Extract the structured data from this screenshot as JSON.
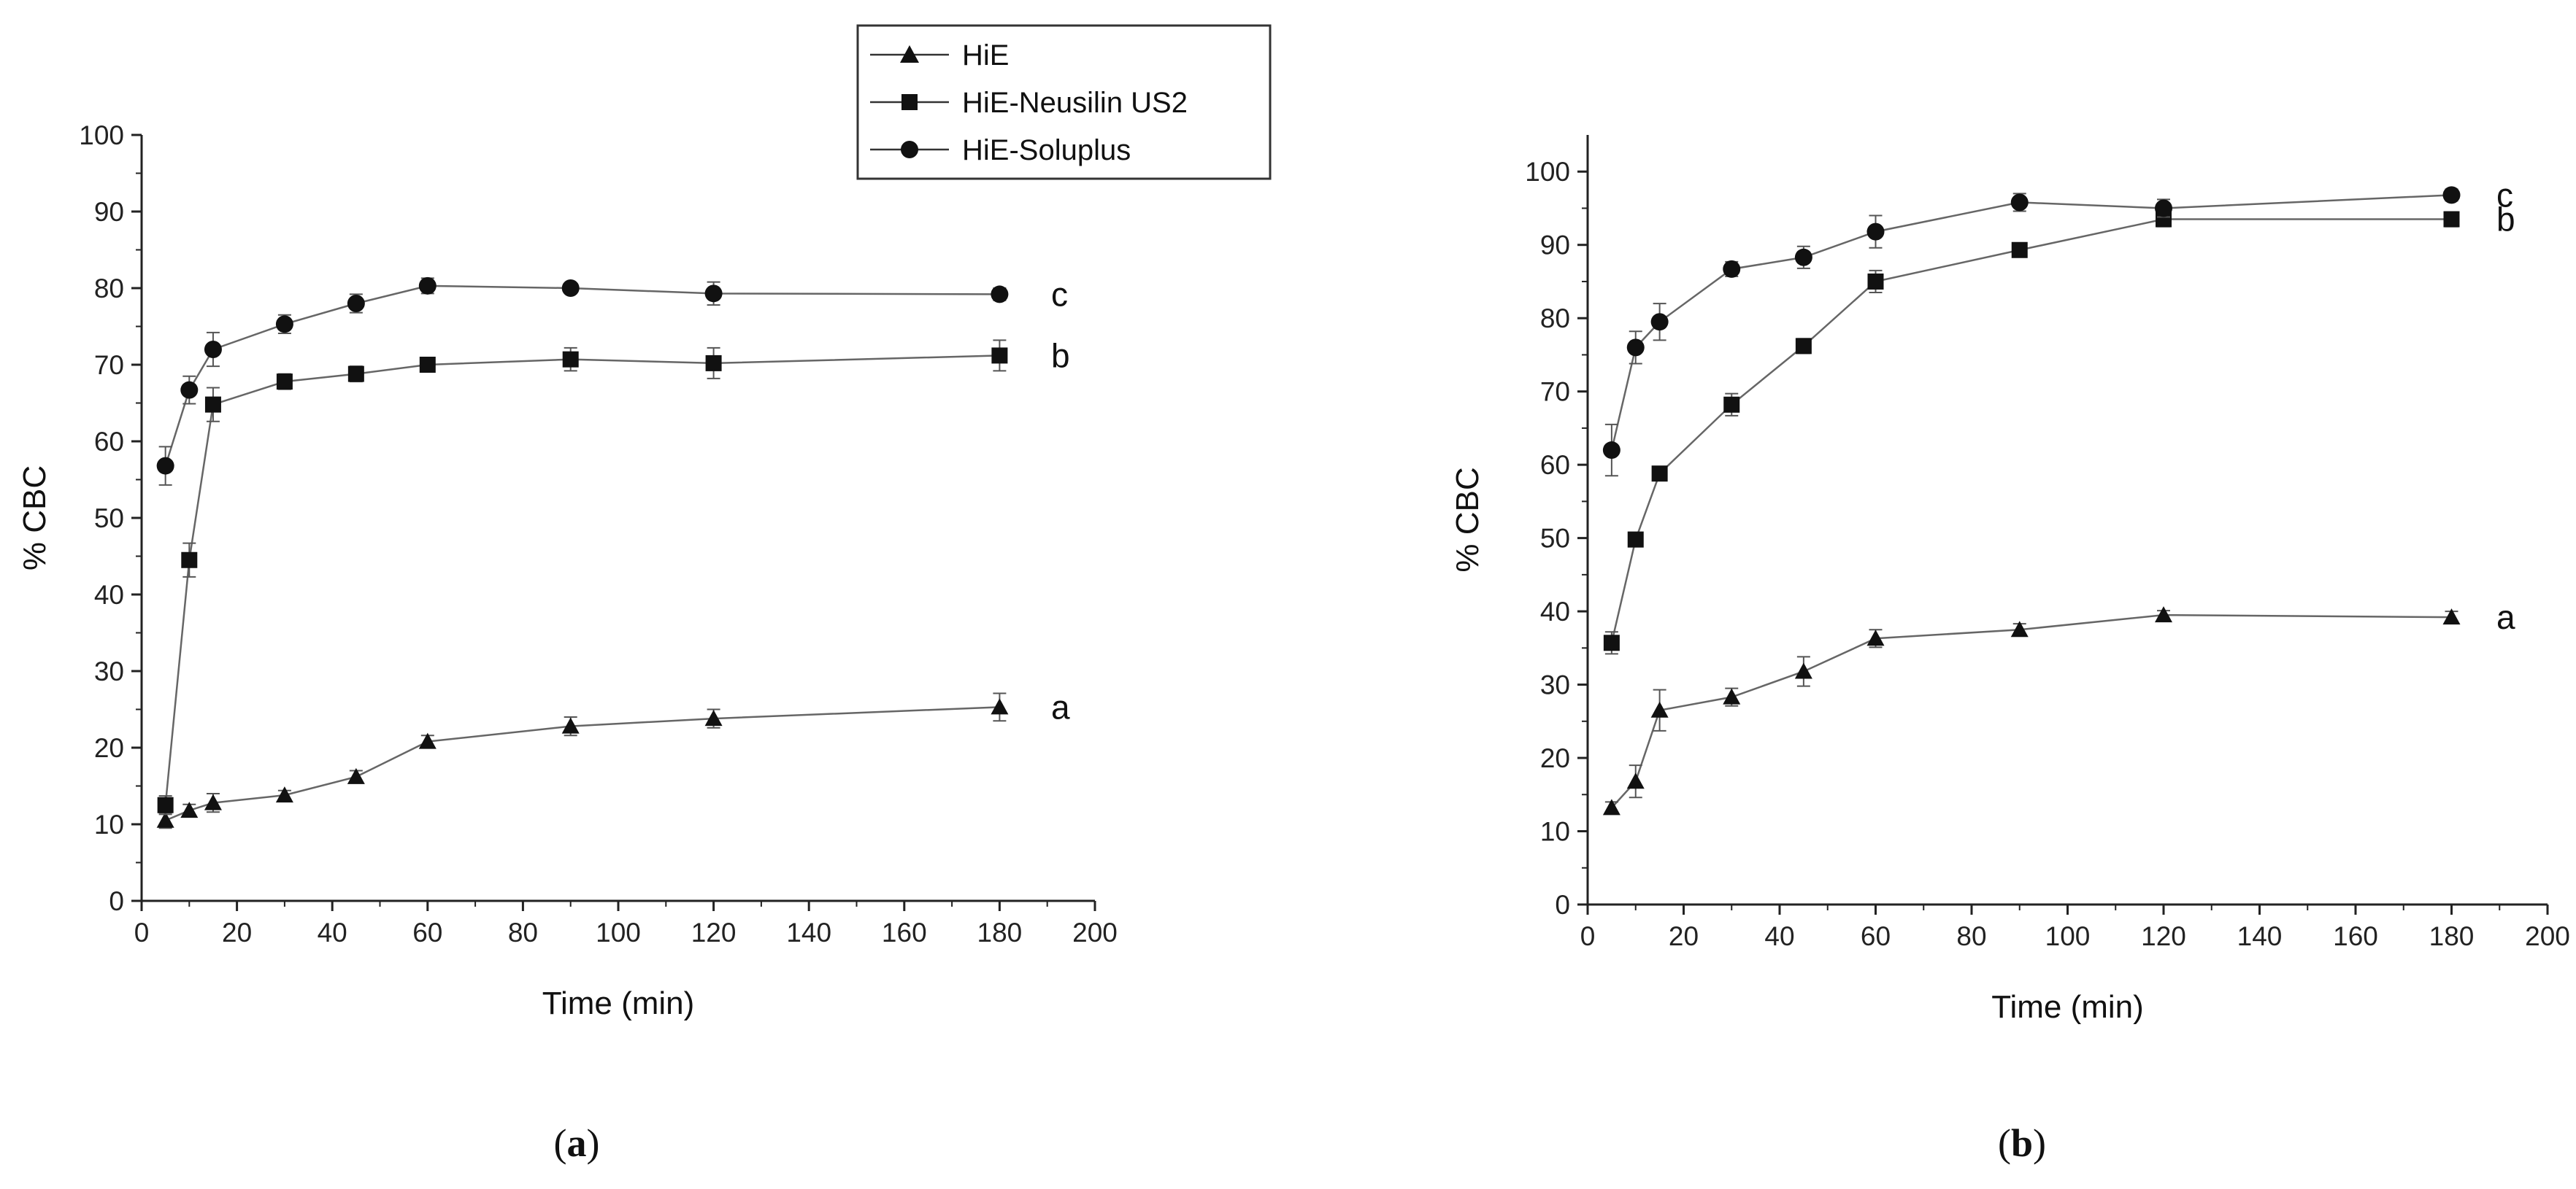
{
  "legend": {
    "entries": [
      {
        "label": "HiE",
        "marker": "triangle"
      },
      {
        "label": "HiE-Neusilin US2",
        "marker": "square"
      },
      {
        "label": "HiE-Soluplus",
        "marker": "circle"
      }
    ]
  },
  "chart_data": [
    {
      "type": "line",
      "panel_label": "(a)",
      "panel_letter": "a",
      "xlabel": "Time (min)",
      "ylabel": "% CBC",
      "xlim": [
        0,
        200
      ],
      "ylim": [
        0,
        100
      ],
      "xticks": [
        0,
        20,
        40,
        60,
        80,
        100,
        120,
        140,
        160,
        180,
        200
      ],
      "yticks": [
        0,
        10,
        20,
        30,
        40,
        50,
        60,
        70,
        80,
        90,
        100
      ],
      "x": [
        5,
        10,
        15,
        30,
        45,
        60,
        90,
        120,
        180
      ],
      "series": [
        {
          "name": "HiE",
          "marker": "triangle",
          "tag": "a",
          "values": [
            10.5,
            11.8,
            12.8,
            13.8,
            16.2,
            20.8,
            22.8,
            23.8,
            25.3
          ],
          "errors": [
            1.0,
            0.8,
            1.2,
            0.6,
            0.8,
            0.8,
            1.2,
            1.2,
            1.8
          ]
        },
        {
          "name": "HiE-Neusilin US2",
          "marker": "square",
          "tag": "b",
          "values": [
            12.5,
            44.5,
            64.8,
            67.8,
            68.8,
            70.0,
            70.7,
            70.2,
            71.2
          ],
          "errors": [
            1.2,
            2.2,
            2.2,
            1.0,
            1.0,
            0.6,
            1.5,
            2.0,
            2.0
          ]
        },
        {
          "name": "HiE-Soluplus",
          "marker": "circle",
          "tag": "c",
          "values": [
            56.8,
            66.7,
            72.0,
            75.3,
            78.0,
            80.3,
            80.0,
            79.3,
            79.2
          ],
          "errors": [
            2.5,
            1.8,
            2.2,
            1.2,
            1.2,
            1.0,
            0.6,
            1.5,
            0.8
          ]
        }
      ]
    },
    {
      "type": "line",
      "panel_label": "(b)",
      "panel_letter": "b",
      "xlabel": "Time (min)",
      "ylabel": "% CBC",
      "xlim": [
        0,
        200
      ],
      "ylim": [
        0,
        105
      ],
      "xticks": [
        0,
        20,
        40,
        60,
        80,
        100,
        120,
        140,
        160,
        180,
        200
      ],
      "yticks": [
        0,
        10,
        20,
        30,
        40,
        50,
        60,
        70,
        80,
        90,
        100
      ],
      "x": [
        5,
        10,
        15,
        30,
        45,
        60,
        90,
        120,
        180
      ],
      "series": [
        {
          "name": "HiE",
          "marker": "triangle",
          "tag": "a",
          "values": [
            13.2,
            16.8,
            26.5,
            28.3,
            31.8,
            36.3,
            37.5,
            39.5,
            39.2
          ],
          "errors": [
            0.8,
            2.2,
            2.8,
            1.2,
            2.0,
            1.2,
            0.8,
            0.6,
            0.8
          ]
        },
        {
          "name": "HiE-Neusilin US2",
          "marker": "square",
          "tag": "b",
          "values": [
            35.7,
            49.8,
            58.8,
            68.2,
            76.2,
            85.0,
            89.3,
            93.5,
            93.5
          ],
          "errors": [
            1.5,
            0.6,
            0.6,
            1.5,
            1.0,
            1.5,
            0.8,
            1.0,
            1.0
          ]
        },
        {
          "name": "HiE-Soluplus",
          "marker": "circle",
          "tag": "c",
          "values": [
            62.0,
            76.0,
            79.5,
            86.7,
            88.3,
            91.8,
            95.8,
            95.0,
            96.8
          ],
          "errors": [
            3.5,
            2.2,
            2.5,
            1.0,
            1.5,
            2.2,
            1.2,
            1.2,
            0.8
          ]
        }
      ]
    }
  ]
}
